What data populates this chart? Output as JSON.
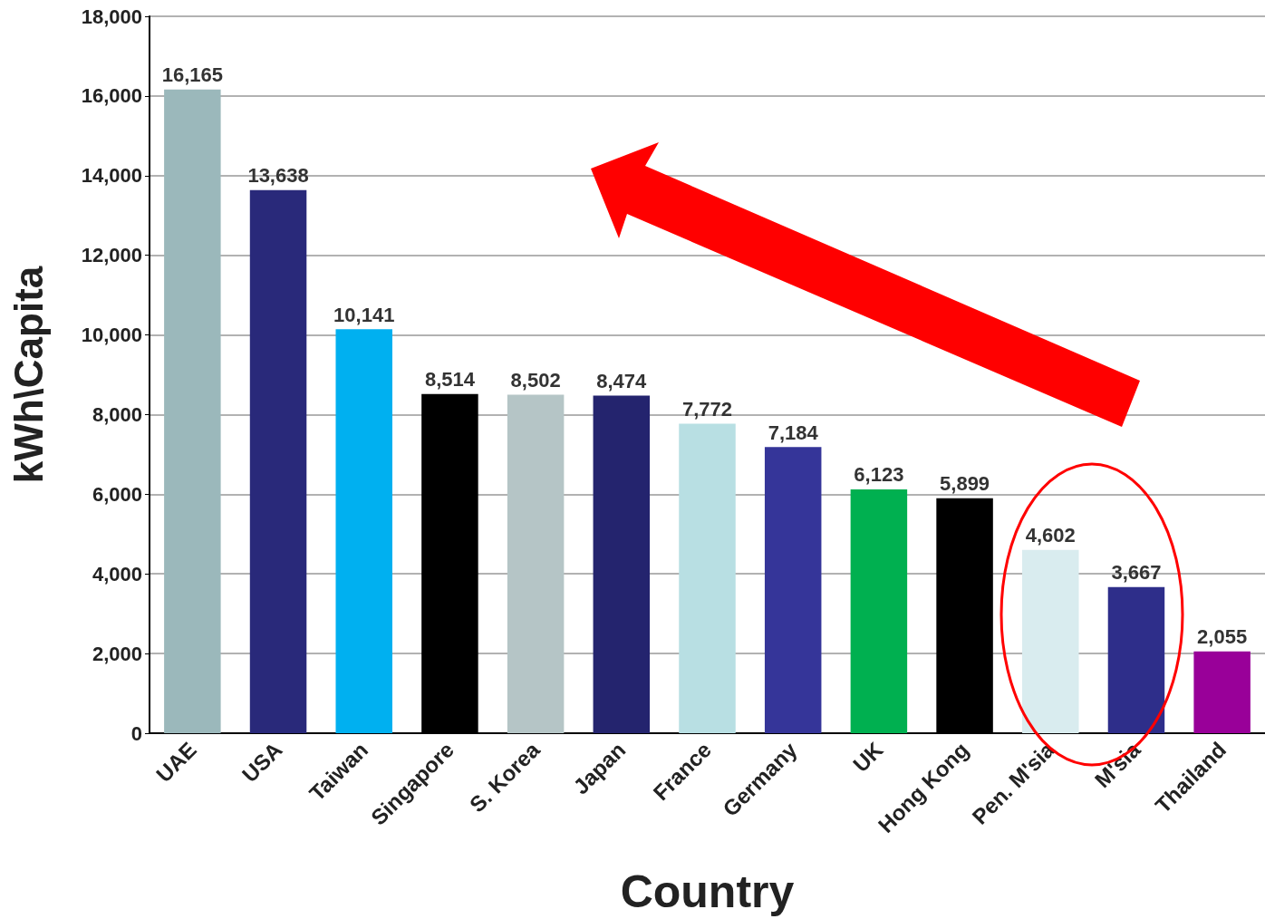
{
  "chart_data": {
    "type": "bar",
    "xlabel": "Country",
    "ylabel": "kWh\\Capita",
    "categories": [
      "UAE",
      "USA",
      "Taiwan",
      "Singapore",
      "S. Korea",
      "Japan",
      "France",
      "Germany",
      "UK",
      "Hong Kong",
      "Pen. M'sia",
      "M'sia",
      "Thailand"
    ],
    "values": [
      16165,
      13638,
      10141,
      8514,
      8502,
      8474,
      7772,
      7184,
      6123,
      5899,
      4602,
      3667,
      2055
    ],
    "value_labels": [
      "16,165",
      "13,638",
      "10,141",
      "8,514",
      "8,502",
      "8,474",
      "7,772",
      "7,184",
      "6,123",
      "5,899",
      "4,602",
      "3,667",
      "2,055"
    ],
    "colors": [
      "#9bb8bb",
      "#29297a",
      "#00b0f0",
      "#000000",
      "#b5c5c6",
      "#24246e",
      "#b8dfe3",
      "#353599",
      "#00b050",
      "#000000",
      "#d9ecef",
      "#2e2e8a",
      "#990099"
    ],
    "ylim": [
      0,
      18000
    ],
    "yticks": [
      0,
      {
        "value": 2000,
        "label": "2,000"
      },
      {
        "value": 4000,
        "label": "4,000"
      },
      {
        "value": 6000,
        "label": "6,000"
      },
      {
        "value": 8000,
        "label": "8,000"
      },
      {
        "value": 10000,
        "label": "10,000"
      },
      {
        "value": 12000,
        "label": "12,000"
      },
      {
        "value": 14000,
        "label": "14,000"
      },
      {
        "value": 16000,
        "label": "16,000"
      },
      {
        "value": 18000,
        "label": "18,000"
      }
    ],
    "grid": "y"
  }
}
